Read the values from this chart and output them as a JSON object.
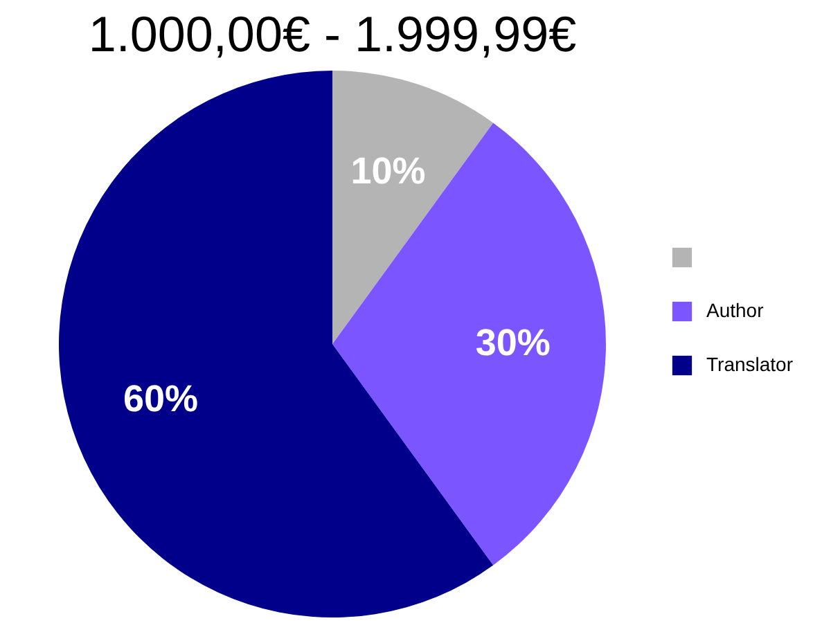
{
  "chart_data": {
    "type": "pie",
    "title": "1.000,00€ - 1.999,99€",
    "categories": [
      null,
      "Author",
      "Translator"
    ],
    "values": [
      10,
      30,
      60
    ],
    "colors": [
      "#b4b4b4",
      "#7b55ff",
      "#00008b"
    ],
    "value_labels": [
      "10%",
      "30%",
      "60%"
    ],
    "legend": "right"
  }
}
